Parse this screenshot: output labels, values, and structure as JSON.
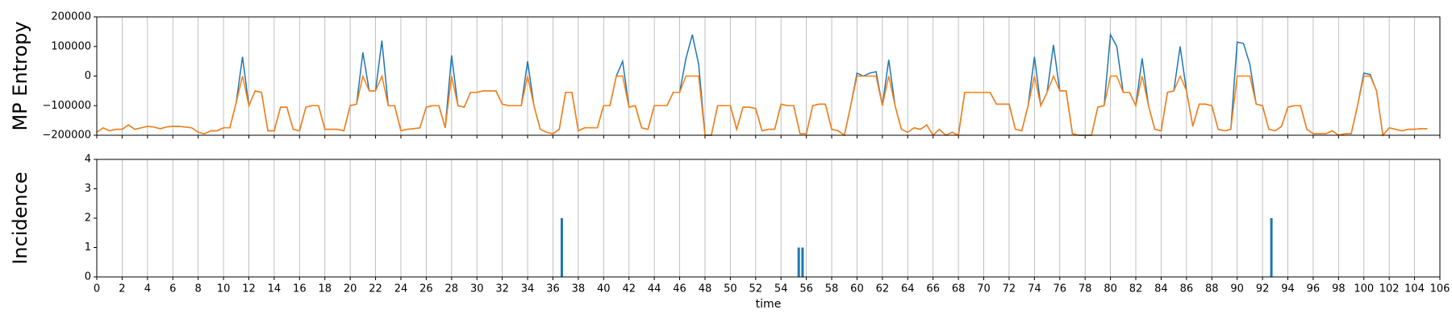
{
  "chart_data": [
    {
      "type": "line",
      "y_label": "MP Entropy",
      "xlim": [
        0,
        106
      ],
      "xticks": [
        0,
        2,
        4,
        6,
        8,
        10,
        12,
        14,
        16,
        18,
        20,
        22,
        24,
        26,
        28,
        30,
        32,
        34,
        36,
        38,
        40,
        42,
        44,
        46,
        48,
        50,
        52,
        54,
        56,
        58,
        60,
        62,
        64,
        66,
        68,
        70,
        72,
        74,
        76,
        78,
        80,
        82,
        84,
        86,
        88,
        90,
        92,
        94,
        96,
        98,
        100,
        102,
        104,
        106
      ],
      "ylim": [
        -200000,
        200000
      ],
      "yticks": [
        {
          "value": -200000,
          "label": "−200000"
        },
        {
          "value": -100000,
          "label": "−100000"
        },
        0,
        100000,
        200000
      ],
      "grid": "x",
      "x": [
        0,
        0.5,
        1,
        1.5,
        2,
        2.5,
        3,
        3.5,
        4,
        4.5,
        5,
        5.5,
        6,
        6.5,
        7,
        7.5,
        8,
        8.5,
        9,
        9.5,
        10,
        10.5,
        11,
        11.5,
        12,
        12.5,
        13,
        13.5,
        14,
        14.5,
        15,
        15.5,
        16,
        16.5,
        17,
        17.5,
        18,
        18.5,
        19,
        19.5,
        20,
        20.5,
        21,
        21.5,
        22,
        22.5,
        23,
        23.5,
        24,
        24.5,
        25,
        25.5,
        26,
        26.5,
        27,
        27.5,
        28,
        28.5,
        29,
        29.5,
        30,
        30.5,
        31,
        31.5,
        32,
        32.5,
        33,
        33.5,
        34,
        34.5,
        35,
        35.5,
        36,
        36.5,
        37,
        37.5,
        38,
        38.5,
        39,
        39.5,
        40,
        40.5,
        41,
        41.5,
        42,
        42.5,
        43,
        43.5,
        44,
        44.5,
        45,
        45.5,
        46,
        46.5,
        47,
        47.5,
        48,
        48.5,
        49,
        49.5,
        50,
        50.5,
        51,
        51.5,
        52,
        52.5,
        53,
        53.5,
        54,
        54.5,
        55,
        55.5,
        56,
        56.5,
        57,
        57.5,
        58,
        58.5,
        59,
        59.5,
        60,
        60.5,
        61,
        61.5,
        62,
        62.5,
        63,
        63.5,
        64,
        64.5,
        65,
        65.5,
        66,
        66.5,
        67,
        67.5,
        68,
        68.5,
        69,
        69.5,
        70,
        70.5,
        71,
        71.5,
        72,
        72.5,
        73,
        73.5,
        74,
        74.5,
        75,
        75.5,
        76,
        76.5,
        77,
        77.5,
        78,
        78.5,
        79,
        79.5,
        80,
        80.5,
        81,
        81.5,
        82,
        82.5,
        83,
        83.5,
        84,
        84.5,
        85,
        85.5,
        86,
        86.5,
        87,
        87.5,
        88,
        88.5,
        89,
        89.5,
        90,
        90.5,
        91,
        91.5,
        92,
        92.5,
        93,
        93.5,
        94,
        94.5,
        95,
        95.5,
        96,
        96.5,
        97,
        97.5,
        98,
        98.5,
        99,
        99.5,
        100,
        100.5,
        101,
        101.5,
        102,
        102.5,
        103,
        103.5,
        104,
        104.5,
        105
      ],
      "series": [
        {
          "color": "#1f77b4",
          "values": [
            -190000,
            -175000,
            -185000,
            -180000,
            -180000,
            -165000,
            -180000,
            -175000,
            -170000,
            -172000,
            -178000,
            -172000,
            -170000,
            -170000,
            -172000,
            -175000,
            -190000,
            -195000,
            -185000,
            -185000,
            -175000,
            -175000,
            -90000,
            65000,
            -100000,
            -50000,
            -55000,
            -185000,
            -185000,
            -105000,
            -105000,
            -180000,
            -185000,
            -105000,
            -100000,
            -100000,
            -180000,
            -180000,
            -180000,
            -185000,
            -100000,
            -95000,
            80000,
            -50000,
            -50000,
            120000,
            -100000,
            -100000,
            -185000,
            -180000,
            -178000,
            -175000,
            -105000,
            -100000,
            -100000,
            -175000,
            70000,
            -100000,
            -105000,
            -55000,
            -55000,
            -50000,
            -50000,
            -50000,
            -95000,
            -100000,
            -100000,
            -100000,
            50000,
            -100000,
            -180000,
            -190000,
            -195000,
            -180000,
            -55000,
            -55000,
            -185000,
            -175000,
            -175000,
            -175000,
            -100000,
            -100000,
            0,
            50000,
            -105000,
            -100000,
            -175000,
            -180000,
            -100000,
            -100000,
            -100000,
            -55000,
            -55000,
            60000,
            140000,
            40000,
            -200000,
            -200000,
            -100000,
            -100000,
            -100000,
            -180000,
            -105000,
            -105000,
            -110000,
            -185000,
            -180000,
            -180000,
            -95000,
            -100000,
            -100000,
            -195000,
            -195000,
            -100000,
            -95000,
            -95000,
            -180000,
            -185000,
            -200000,
            -100000,
            10000,
            0,
            10000,
            15000,
            -100000,
            55000,
            -100000,
            -180000,
            -190000,
            -175000,
            -180000,
            -165000,
            -200000,
            -180000,
            -200000,
            -190000,
            -200000,
            -55000,
            -55000,
            -55000,
            -55000,
            -55000,
            -95000,
            -95000,
            -95000,
            -180000,
            -185000,
            -100000,
            65000,
            -100000,
            -55000,
            105000,
            -50000,
            -50000,
            -195000,
            -200000,
            -200000,
            -200000,
            -105000,
            -100000,
            140000,
            100000,
            -55000,
            -55000,
            -100000,
            60000,
            -100000,
            -180000,
            -185000,
            -55000,
            -50000,
            100000,
            -50000,
            -170000,
            -95000,
            -95000,
            -100000,
            -180000,
            -185000,
            -180000,
            115000,
            110000,
            40000,
            -95000,
            -100000,
            -180000,
            -185000,
            -170000,
            -105000,
            -100000,
            -100000,
            -180000,
            -195000,
            -195000,
            -195000,
            -185000,
            -200000,
            -195000,
            -195000,
            -100000,
            10000,
            5000,
            -50000,
            -200000,
            -175000,
            -180000,
            -185000,
            -180000,
            -180000,
            -178000,
            -178000
          ]
        },
        {
          "color": "#ff7f0e",
          "values": [
            -190000,
            -175000,
            -185000,
            -180000,
            -180000,
            -165000,
            -180000,
            -175000,
            -170000,
            -172000,
            -178000,
            -172000,
            -170000,
            -170000,
            -172000,
            -175000,
            -190000,
            -195000,
            -185000,
            -185000,
            -175000,
            -175000,
            -90000,
            0,
            -100000,
            -50000,
            -55000,
            -185000,
            -185000,
            -105000,
            -105000,
            -180000,
            -185000,
            -105000,
            -100000,
            -100000,
            -180000,
            -180000,
            -180000,
            -185000,
            -100000,
            -95000,
            0,
            -50000,
            -50000,
            0,
            -100000,
            -100000,
            -185000,
            -180000,
            -178000,
            -175000,
            -105000,
            -100000,
            -100000,
            -175000,
            0,
            -100000,
            -105000,
            -55000,
            -55000,
            -50000,
            -50000,
            -50000,
            -95000,
            -100000,
            -100000,
            -100000,
            0,
            -100000,
            -180000,
            -190000,
            -195000,
            -180000,
            -55000,
            -55000,
            -185000,
            -175000,
            -175000,
            -175000,
            -100000,
            -100000,
            0,
            0,
            -105000,
            -100000,
            -175000,
            -180000,
            -100000,
            -100000,
            -100000,
            -55000,
            -55000,
            0,
            0,
            0,
            -200000,
            -200000,
            -100000,
            -100000,
            -100000,
            -180000,
            -105000,
            -105000,
            -110000,
            -185000,
            -180000,
            -180000,
            -95000,
            -100000,
            -100000,
            -195000,
            -195000,
            -100000,
            -95000,
            -95000,
            -180000,
            -185000,
            -200000,
            -100000,
            0,
            0,
            0,
            0,
            -100000,
            0,
            -100000,
            -180000,
            -190000,
            -175000,
            -180000,
            -165000,
            -200000,
            -180000,
            -200000,
            -190000,
            -200000,
            -55000,
            -55000,
            -55000,
            -55000,
            -55000,
            -95000,
            -95000,
            -95000,
            -180000,
            -185000,
            -100000,
            0,
            -100000,
            -55000,
            0,
            -50000,
            -50000,
            -195000,
            -200000,
            -200000,
            -200000,
            -105000,
            -100000,
            0,
            0,
            -55000,
            -55000,
            -100000,
            0,
            -100000,
            -180000,
            -185000,
            -55000,
            -50000,
            0,
            -50000,
            -170000,
            -95000,
            -95000,
            -100000,
            -180000,
            -185000,
            -180000,
            0,
            0,
            0,
            -95000,
            -100000,
            -180000,
            -185000,
            -170000,
            -105000,
            -100000,
            -100000,
            -180000,
            -195000,
            -195000,
            -195000,
            -185000,
            -200000,
            -195000,
            -195000,
            -100000,
            0,
            0,
            -50000,
            -200000,
            -175000,
            -180000,
            -185000,
            -180000,
            -180000,
            -178000,
            -178000
          ]
        }
      ]
    },
    {
      "type": "bar",
      "y_label": "Incidence",
      "x_label": "time",
      "xlim": [
        0,
        106
      ],
      "xticks": [
        0,
        2,
        4,
        6,
        8,
        10,
        12,
        14,
        16,
        18,
        20,
        22,
        24,
        26,
        28,
        30,
        32,
        34,
        36,
        38,
        40,
        42,
        44,
        46,
        48,
        50,
        52,
        54,
        56,
        58,
        60,
        62,
        64,
        66,
        68,
        70,
        72,
        74,
        76,
        78,
        80,
        82,
        84,
        86,
        88,
        90,
        92,
        94,
        96,
        98,
        100,
        102,
        104,
        106
      ],
      "ylim": [
        0,
        4
      ],
      "yticks": [
        0,
        1,
        2,
        3,
        4
      ],
      "grid": "x",
      "color": "#1f77b4",
      "x": [
        36.7,
        55.4,
        55.7,
        92.7
      ],
      "values": [
        2,
        1,
        1,
        2
      ]
    }
  ]
}
